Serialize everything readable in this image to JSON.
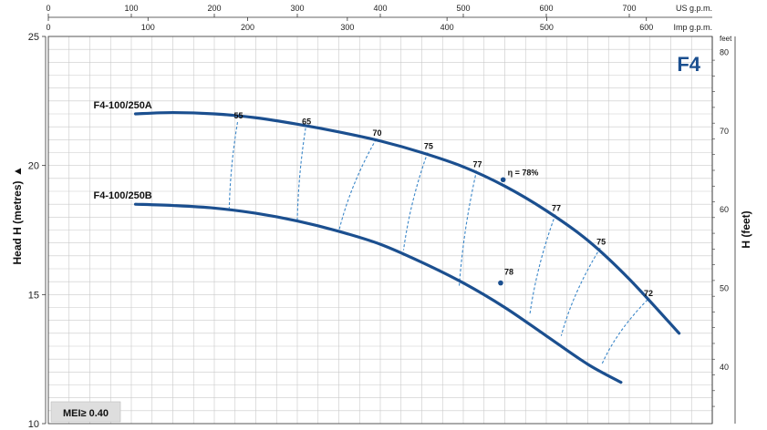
{
  "chart_data": {
    "type": "line",
    "badge": "F4",
    "mei": "MEI≥ 0.40",
    "ylabel": "Head H  (metres)",
    "ylabel_marker": "▲",
    "y2label": "H (feet)",
    "y2unit": "feet",
    "x_top_unit_us": "US g.p.m.",
    "x_top_unit_imp": "Imp g.p.m.",
    "ylim": [
      10,
      25
    ],
    "xlim": [
      0,
      800
    ],
    "yticks": [
      10,
      15,
      20,
      25
    ],
    "usgpm_ticks": [
      0,
      100,
      200,
      300,
      400,
      500,
      600,
      700
    ],
    "impgpm_ticks": [
      0,
      100,
      200,
      300,
      400,
      500,
      600
    ],
    "feet_ticks": [
      40,
      50,
      60,
      70,
      80
    ],
    "series": [
      {
        "name": "F4-100/250A",
        "x": [
          105,
          150,
          200,
          250,
          300,
          350,
          400,
          450,
          500,
          550,
          600,
          650,
          700,
          760
        ],
        "y": [
          22.0,
          22.05,
          22.0,
          21.85,
          21.6,
          21.3,
          20.95,
          20.5,
          19.95,
          19.2,
          18.25,
          17.1,
          15.6,
          13.5
        ]
      },
      {
        "name": "F4-100/250B",
        "x": [
          105,
          150,
          200,
          250,
          300,
          350,
          400,
          450,
          500,
          550,
          600,
          650,
          690
        ],
        "y": [
          18.5,
          18.45,
          18.35,
          18.15,
          17.85,
          17.45,
          16.95,
          16.25,
          15.45,
          14.5,
          13.4,
          12.3,
          11.6
        ]
      }
    ],
    "efficiency_lines": [
      {
        "label": "55",
        "top": [
          228,
          21.68
        ],
        "bottom": [
          218,
          18.35
        ]
      },
      {
        "label": "65",
        "top": [
          310,
          21.45
        ],
        "bottom": [
          300,
          17.9
        ]
      },
      {
        "label": "70",
        "top": [
          395,
          21.02
        ],
        "bottom": [
          350,
          17.45
        ]
      },
      {
        "label": "75",
        "top": [
          457,
          20.5
        ],
        "bottom": [
          428,
          16.72
        ]
      },
      {
        "label": "77",
        "top": [
          516,
          19.8
        ],
        "bottom": [
          495,
          15.3
        ]
      },
      {
        "label": "77",
        "top": [
          611,
          18.1
        ],
        "bottom": [
          580,
          14.2
        ]
      },
      {
        "label": "75",
        "top": [
          665,
          16.8
        ],
        "bottom": [
          618,
          13.4
        ]
      },
      {
        "label": "72",
        "top": [
          722,
          14.8
        ],
        "bottom": [
          667,
          12.3
        ]
      }
    ],
    "bep_points": [
      {
        "label": "η = 78%",
        "x": 548,
        "y": 19.45
      },
      {
        "label": "78",
        "x": 545,
        "y": 15.45
      }
    ],
    "grid": true
  }
}
